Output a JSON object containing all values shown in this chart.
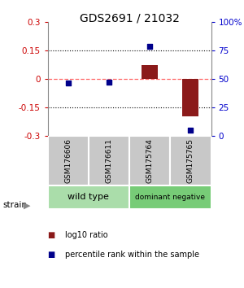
{
  "title": "GDS2691 / 21032",
  "samples": [
    "GSM176606",
    "GSM176611",
    "GSM175764",
    "GSM175765"
  ],
  "log10_ratio": [
    0.0,
    0.0,
    0.07,
    -0.2
  ],
  "percentile_rank": [
    46,
    47,
    78,
    5
  ],
  "ylim_left": [
    -0.3,
    0.3
  ],
  "ylim_right": [
    0,
    100
  ],
  "yticks_left": [
    -0.3,
    -0.15,
    0,
    0.15,
    0.3
  ],
  "yticks_right": [
    0,
    25,
    50,
    75,
    100
  ],
  "ytick_labels_right": [
    "0",
    "25",
    "50",
    "75",
    "100%"
  ],
  "ytick_labels_left": [
    "-0.3",
    "-0.15",
    "0",
    "0.15",
    "0.3"
  ],
  "bar_color": "#8B1A1A",
  "point_color": "#00008B",
  "zero_line_color": "#FF6666",
  "dotted_line_color": "#000000",
  "group1_label": "wild type",
  "group2_label": "dominant negative",
  "group1_color": "#AADDAA",
  "group2_color": "#77CC77",
  "sample_box_color": "#C8C8C8",
  "label_color_left": "#CC0000",
  "label_color_right": "#0000CC",
  "bar_width": 0.4,
  "title_fontsize": 10,
  "tick_fontsize": 7.5,
  "sample_fontsize": 6.5,
  "group_fontsize": 8,
  "legend_fontsize": 7
}
